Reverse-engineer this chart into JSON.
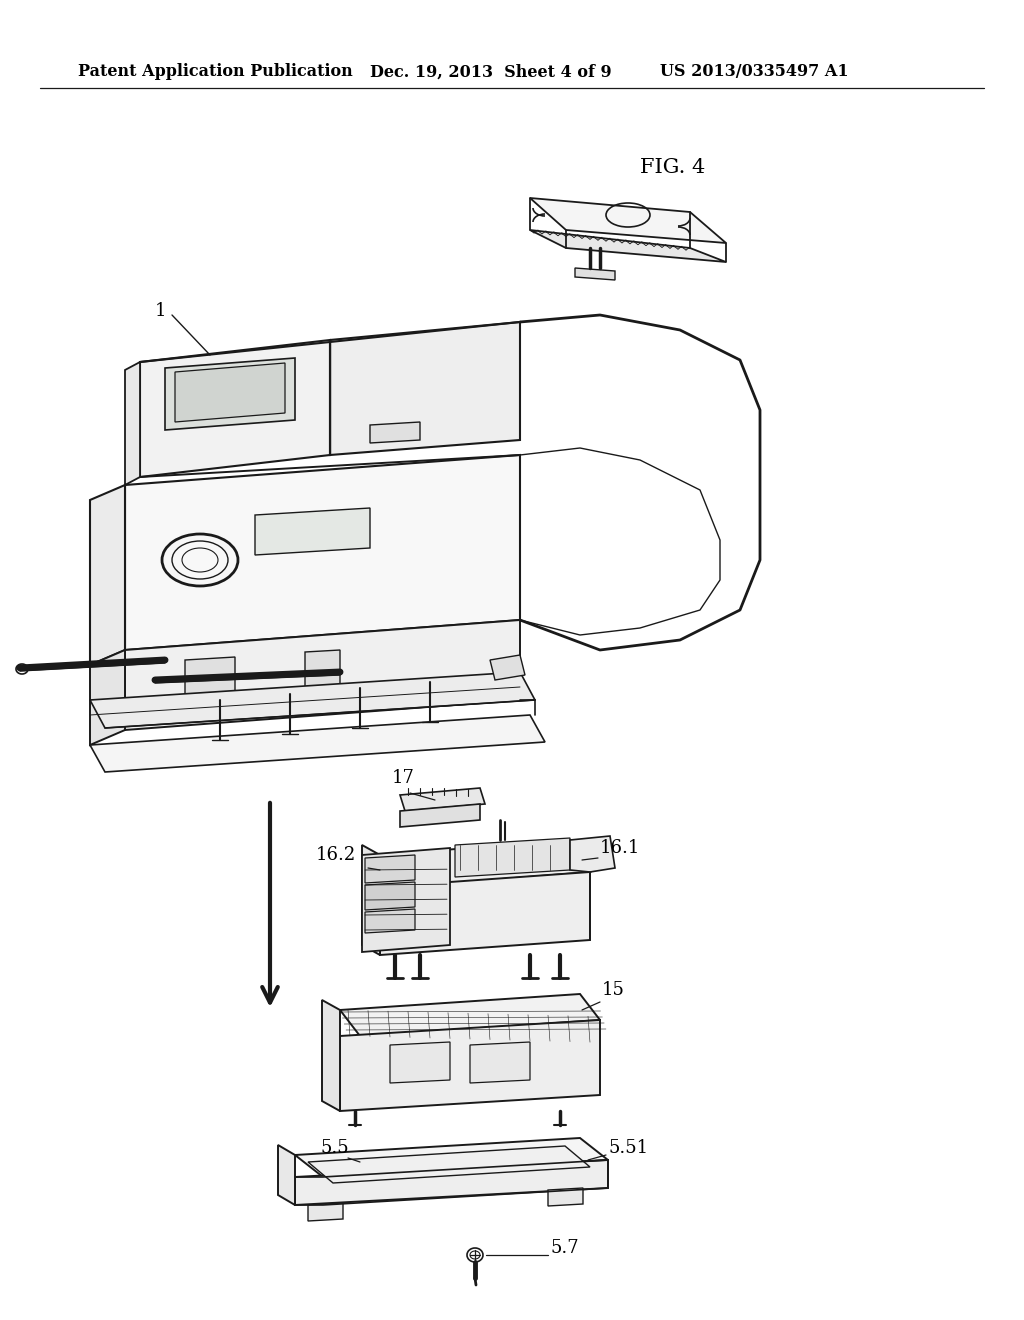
{
  "background_color": "#ffffff",
  "header_left": "Patent Application Publication",
  "header_middle": "Dec. 19, 2013  Sheet 4 of 9",
  "header_right": "US 2013/0335497 A1",
  "fig_label": "FIG. 4",
  "line_color": "#1a1a1a",
  "text_color": "#000000",
  "header_fontsize": 11.5,
  "label_fontsize": 13,
  "fig_label_fontsize": 15
}
